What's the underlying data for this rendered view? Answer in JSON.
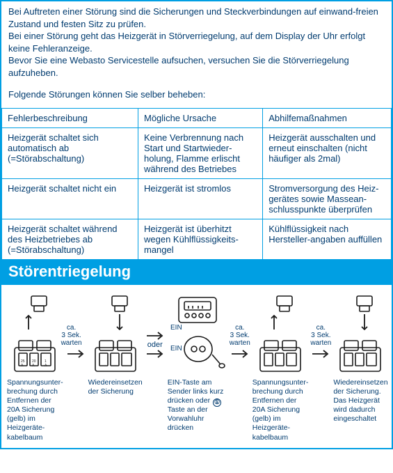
{
  "intro": {
    "p1": "Bei Auftreten einer Störung sind die Sicherungen und Steckverbindungen auf einwand-freien Zustand und festen Sitz zu prüfen.",
    "p2": "Bei einer Störung geht das Heizgerät in Störverriegelung, auf dem Display der Uhr erfolgt keine Fehleranzeige.",
    "p3": "Bevor Sie eine Webasto Servicestelle aufsuchen, versuchen Sie die Störverriegelung aufzuheben.",
    "p4": "Folgende Störungen können Sie selber beheben:"
  },
  "table": {
    "headers": [
      "Fehlerbeschreibung",
      "Mögliche Ursache",
      "Abhilfemaßnahmen"
    ],
    "rows": [
      [
        "Heizgerät schaltet sich automatisch ab (=Störabschaltung)",
        "Keine Verbrennung nach Start und Startwieder-holung, Flamme erlischt während des Betriebes",
        "Heizgerät ausschalten und erneut einschalten (nicht häufiger als 2mal)"
      ],
      [
        "Heizgerät schaltet nicht ein",
        "Heizgerät ist stromlos",
        "Stromversorgung des Heiz-gerätes sowie Massean-schlusspunkte überprüfen"
      ],
      [
        "Heizgerät schaltet während des Heizbetriebes ab (=Störabschaltung)",
        "Heizgerät ist überhitzt wegen Kühlflüssigkeits-mangel",
        "Kühlflüssigkeit nach Hersteller-angaben auffüllen"
      ]
    ]
  },
  "sectionTitle": "Störentriegelung",
  "labels": {
    "wait": "ca. 3 Sek. warten",
    "oder": "oder",
    "ein": "EIN"
  },
  "captions": {
    "s1": "Spannungsunter-brechung durch Entfernen der 20A Sicherung (gelb) im Heizgeräte-kabelbaum",
    "s2": "Wiedereinsetzen der Sicherung",
    "s3a": "EIN-Taste am Sender links kurz drücken oder",
    "s3b": " Taste an der Vorwahluhr drücken",
    "s4": "Spannungsunter-brechung durch Entfernen der 20A Sicherung (gelb) im Heizgeräte-kabelbaum",
    "s5": "Wiedereinsetzen der Sicherung. Das Heizgerät wird dadurch eingeschaltet"
  },
  "colors": {
    "accent": "#009fe3",
    "text": "#003b6f",
    "stroke": "#1a1a1a"
  }
}
